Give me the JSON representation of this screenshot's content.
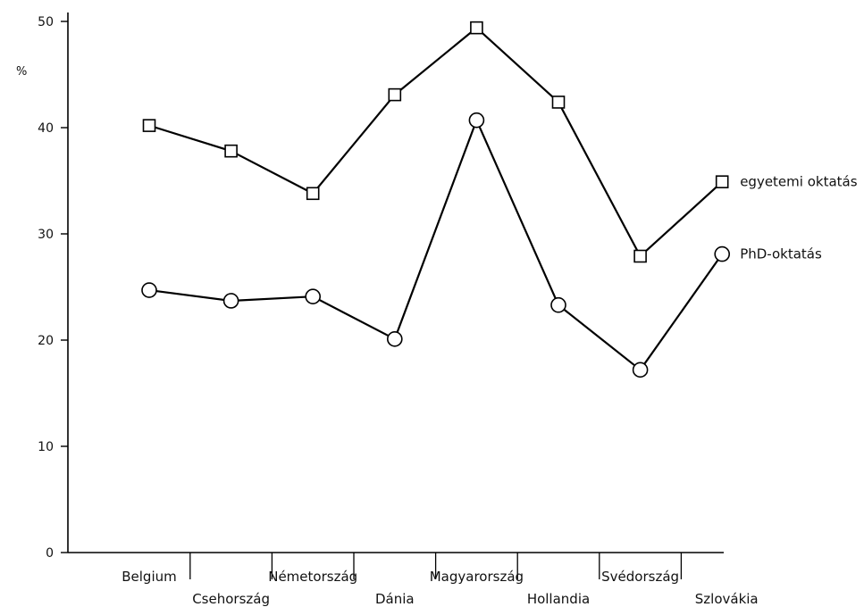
{
  "chart_data": {
    "type": "line",
    "title": "",
    "xlabel": "",
    "ylabel": "%",
    "ylim": [
      0,
      50
    ],
    "yticks": [
      0,
      10,
      20,
      30,
      40,
      50
    ],
    "grid": false,
    "legend_placement": "right",
    "categories": [
      "Belgium",
      "Csehország",
      "Németország",
      "Dánia",
      "Magyarország",
      "Hollandia",
      "Svédország",
      "Szlovákia"
    ],
    "series": [
      {
        "name": "egyetemi oktatás",
        "marker": "square",
        "values": [
          40.2,
          37.8,
          33.8,
          43.1,
          49.4,
          42.4,
          27.9,
          34.9
        ]
      },
      {
        "name": "PhD-oktatás",
        "marker": "circle",
        "values": [
          24.7,
          23.7,
          24.1,
          20.1,
          40.7,
          23.3,
          17.2,
          28.1
        ]
      }
    ]
  }
}
